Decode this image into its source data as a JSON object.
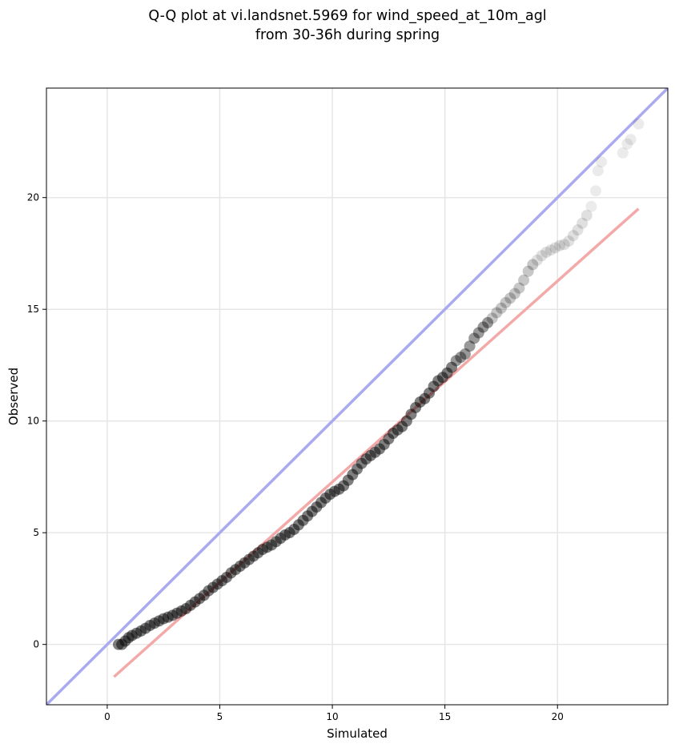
{
  "chart_data": {
    "type": "scatter",
    "title_lines": [
      "Q-Q plot at vi.landsnet.5969 for wind_speed_at_10m_agl",
      "from 30-36h during spring"
    ],
    "xlabel": "Simulated",
    "ylabel": "Observed",
    "xlim": [
      -2.7,
      24.9
    ],
    "ylim": [
      -2.7,
      24.9
    ],
    "xticks": [
      0,
      5,
      10,
      15,
      20
    ],
    "yticks": [
      0,
      5,
      10,
      15,
      20
    ],
    "grid": true,
    "reference_line": {
      "label": "1:1",
      "color": "#aaaaf0",
      "from": [
        -2.7,
        -2.7
      ],
      "to": [
        24.9,
        24.9
      ]
    },
    "fit_line": {
      "color": "#f4a9a9",
      "from": [
        0.3,
        -1.45
      ],
      "to": [
        23.6,
        19.5
      ]
    },
    "point_color": "#000000",
    "points": [
      [
        0.5,
        0.0
      ],
      [
        0.65,
        0.0
      ],
      [
        0.8,
        0.15
      ],
      [
        0.95,
        0.3
      ],
      [
        1.1,
        0.4
      ],
      [
        1.3,
        0.5
      ],
      [
        1.5,
        0.6
      ],
      [
        1.7,
        0.72
      ],
      [
        1.9,
        0.85
      ],
      [
        2.1,
        0.95
      ],
      [
        2.3,
        1.05
      ],
      [
        2.5,
        1.15
      ],
      [
        2.7,
        1.22
      ],
      [
        2.9,
        1.3
      ],
      [
        3.1,
        1.4
      ],
      [
        3.3,
        1.5
      ],
      [
        3.5,
        1.6
      ],
      [
        3.7,
        1.75
      ],
      [
        3.9,
        1.9
      ],
      [
        4.1,
        2.05
      ],
      [
        4.3,
        2.2
      ],
      [
        4.5,
        2.4
      ],
      [
        4.7,
        2.55
      ],
      [
        4.9,
        2.7
      ],
      [
        5.1,
        2.85
      ],
      [
        5.3,
        3.0
      ],
      [
        5.5,
        3.2
      ],
      [
        5.7,
        3.35
      ],
      [
        5.9,
        3.5
      ],
      [
        6.1,
        3.65
      ],
      [
        6.3,
        3.8
      ],
      [
        6.5,
        3.95
      ],
      [
        6.7,
        4.1
      ],
      [
        6.9,
        4.25
      ],
      [
        7.1,
        4.35
      ],
      [
        7.3,
        4.45
      ],
      [
        7.5,
        4.6
      ],
      [
        7.7,
        4.75
      ],
      [
        7.9,
        4.9
      ],
      [
        8.1,
        5.0
      ],
      [
        8.3,
        5.15
      ],
      [
        8.5,
        5.35
      ],
      [
        8.7,
        5.55
      ],
      [
        8.9,
        5.75
      ],
      [
        9.1,
        5.95
      ],
      [
        9.3,
        6.15
      ],
      [
        9.5,
        6.35
      ],
      [
        9.7,
        6.55
      ],
      [
        9.9,
        6.72
      ],
      [
        10.1,
        6.85
      ],
      [
        10.3,
        6.95
      ],
      [
        10.5,
        7.1
      ],
      [
        10.7,
        7.35
      ],
      [
        10.9,
        7.6
      ],
      [
        11.1,
        7.85
      ],
      [
        11.3,
        8.1
      ],
      [
        11.5,
        8.3
      ],
      [
        11.7,
        8.45
      ],
      [
        11.9,
        8.6
      ],
      [
        12.1,
        8.75
      ],
      [
        12.3,
        8.95
      ],
      [
        12.5,
        9.2
      ],
      [
        12.7,
        9.45
      ],
      [
        12.9,
        9.6
      ],
      [
        13.1,
        9.75
      ],
      [
        13.3,
        10.0
      ],
      [
        13.5,
        10.3
      ],
      [
        13.7,
        10.6
      ],
      [
        13.9,
        10.85
      ],
      [
        14.1,
        11.0
      ],
      [
        14.3,
        11.25
      ],
      [
        14.5,
        11.55
      ],
      [
        14.7,
        11.8
      ],
      [
        14.9,
        11.95
      ],
      [
        15.1,
        12.15
      ],
      [
        15.3,
        12.4
      ],
      [
        15.5,
        12.7
      ],
      [
        15.7,
        12.85
      ],
      [
        15.9,
        13.0
      ],
      [
        16.1,
        13.35
      ],
      [
        16.3,
        13.7
      ],
      [
        16.5,
        13.95
      ],
      [
        16.7,
        14.2
      ],
      [
        16.9,
        14.4
      ],
      [
        17.1,
        14.6
      ],
      [
        17.3,
        14.85
      ],
      [
        17.5,
        15.05
      ],
      [
        17.7,
        15.3
      ],
      [
        17.9,
        15.5
      ],
      [
        18.1,
        15.7
      ],
      [
        18.3,
        15.95
      ],
      [
        18.5,
        16.3
      ],
      [
        18.7,
        16.7
      ],
      [
        18.9,
        17.0
      ],
      [
        19.1,
        17.2
      ],
      [
        19.3,
        17.4
      ],
      [
        19.5,
        17.55
      ],
      [
        19.7,
        17.65
      ],
      [
        19.9,
        17.75
      ],
      [
        20.1,
        17.85
      ],
      [
        20.3,
        17.9
      ],
      [
        20.5,
        18.05
      ],
      [
        20.7,
        18.3
      ],
      [
        20.9,
        18.55
      ],
      [
        21.1,
        18.85
      ],
      [
        21.3,
        19.2
      ],
      [
        21.5,
        19.6
      ],
      [
        21.7,
        20.3
      ],
      [
        21.8,
        21.2
      ],
      [
        21.95,
        21.6
      ],
      [
        22.9,
        22.0
      ],
      [
        23.1,
        22.4
      ],
      [
        23.25,
        22.6
      ],
      [
        23.6,
        23.3
      ]
    ]
  }
}
